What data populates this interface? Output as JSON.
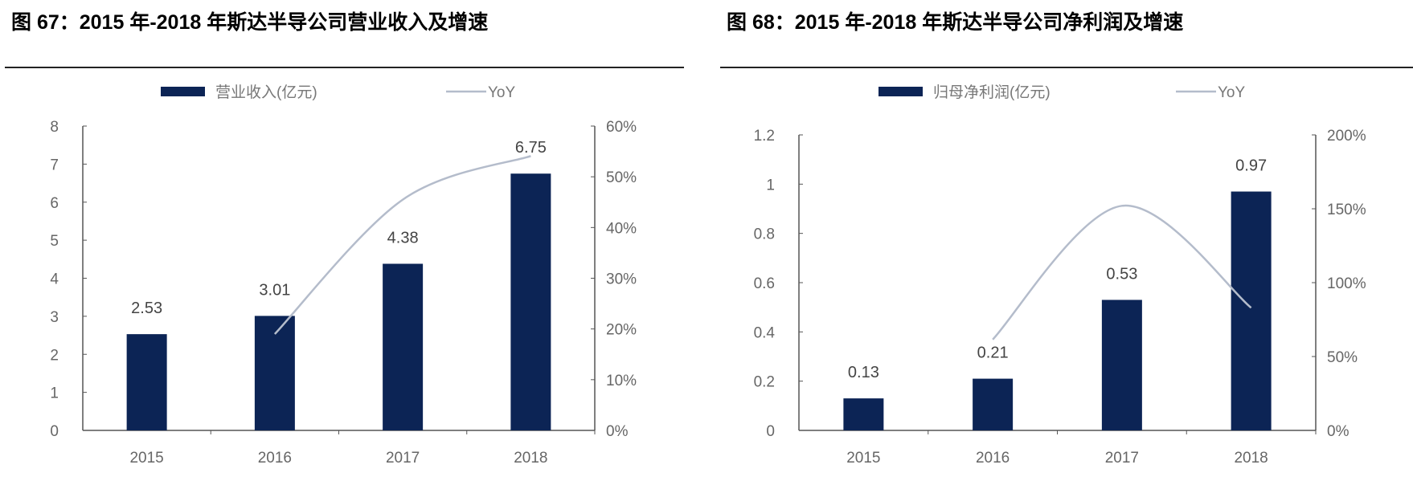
{
  "colors": {
    "bar": "#0c2455",
    "line": "#b4bccb",
    "axis": "#555555"
  },
  "chart_data": [
    {
      "type": "bar",
      "title": "图 67：2015 年-2018 年斯达半导公司营业收入及增速",
      "categories": [
        "2015",
        "2016",
        "2017",
        "2018"
      ],
      "series": [
        {
          "name": "营业收入(亿元)",
          "type": "bar",
          "axis": "left",
          "values": [
            2.53,
            3.01,
            4.38,
            6.75
          ],
          "labels": [
            "2.53",
            "3.01",
            "4.38",
            "6.75"
          ]
        },
        {
          "name": "YoY",
          "type": "line",
          "axis": "right",
          "values": [
            null,
            0.19,
            0.455,
            0.541
          ]
        }
      ],
      "ylim": [
        0,
        8
      ],
      "yticks": [
        "0",
        "1",
        "2",
        "3",
        "4",
        "5",
        "6",
        "7",
        "8"
      ],
      "y2lim": [
        0,
        0.6
      ],
      "y2ticks": [
        "0%",
        "10%",
        "20%",
        "30%",
        "40%",
        "50%",
        "60%"
      ],
      "legend": "top",
      "grid": false
    },
    {
      "type": "bar",
      "title": "图 68：2015 年-2018 年斯达半导公司净利润及增速",
      "categories": [
        "2015",
        "2016",
        "2017",
        "2018"
      ],
      "series": [
        {
          "name": "归母净利润(亿元)",
          "type": "bar",
          "axis": "left",
          "values": [
            0.13,
            0.21,
            0.53,
            0.97
          ],
          "labels": [
            "0.13",
            "0.21",
            "0.53",
            "0.97"
          ]
        },
        {
          "name": "YoY",
          "type": "line",
          "axis": "right",
          "values": [
            null,
            0.615,
            1.52,
            0.83
          ]
        }
      ],
      "ylim": [
        0,
        1.2
      ],
      "yticks": [
        "0",
        "0.2",
        "0.4",
        "0.6",
        "0.8",
        "1",
        "1.2"
      ],
      "y2lim": [
        0,
        2
      ],
      "y2ticks": [
        "0%",
        "50%",
        "100%",
        "150%",
        "200%"
      ],
      "legend": "top",
      "grid": false
    }
  ]
}
